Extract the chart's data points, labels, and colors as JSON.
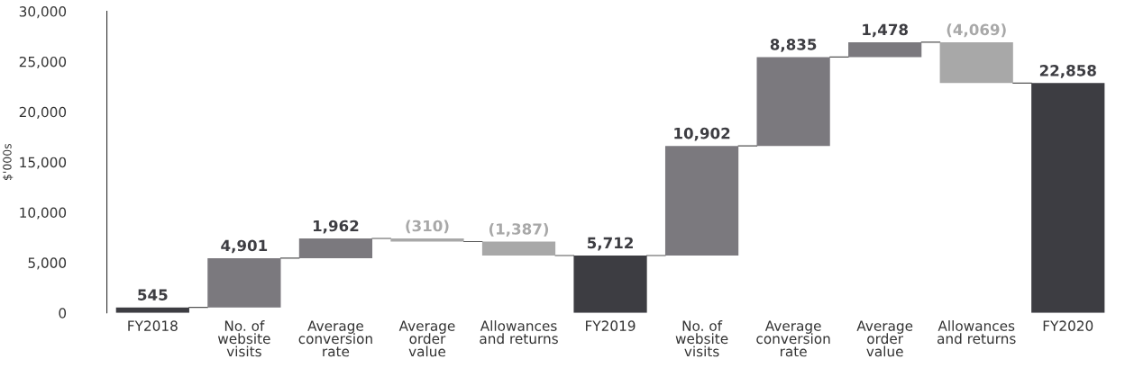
{
  "chart_data": {
    "type": "bar",
    "ylabel": "$'000s",
    "categories": [
      "FY2018",
      "No. of\nwebsite\nvisits",
      "Average\nconversion\nrate",
      "Average\norder\nvalue",
      "Allowances\nand returns",
      "FY2019",
      "No. of\nwebsite\nvisits",
      "Average\nconversion\nrate",
      "Average\norder\nvalue",
      "Allowances\nand returns",
      "FY2020"
    ],
    "values": [
      545,
      4901,
      1962,
      -310,
      -1387,
      5712,
      10902,
      8835,
      1478,
      -4069,
      22858
    ],
    "base": [
      0,
      545,
      5446,
      7408,
      7098,
      0,
      5712,
      16614,
      25449,
      26927,
      0
    ],
    "value_labels": [
      "545",
      "4,901",
      "1,962",
      "(310)",
      "(1,387)",
      "5,712",
      "10,902",
      "8,835",
      "1,478",
      "(4,069)",
      "22,858"
    ],
    "colors": [
      "#3d3d42",
      "#7b797e",
      "#7b797e",
      "#a8a8a8",
      "#a8a8a8",
      "#3d3d42",
      "#7b797e",
      "#7b797e",
      "#7b797e",
      "#a8a8a8",
      "#3d3d42"
    ],
    "ylim": [
      0,
      30000
    ],
    "yticks": [
      0,
      {
        "value": 5000,
        "label": "5,000"
      },
      {
        "value": 10000,
        "label": "10,000"
      },
      {
        "value": 15000,
        "label": "15,000"
      },
      {
        "value": 20000,
        "label": "20,000"
      },
      {
        "value": 25000,
        "label": "25,000"
      },
      {
        "value": 30000,
        "label": "30,000"
      }
    ],
    "grid": false,
    "legend": false
  }
}
